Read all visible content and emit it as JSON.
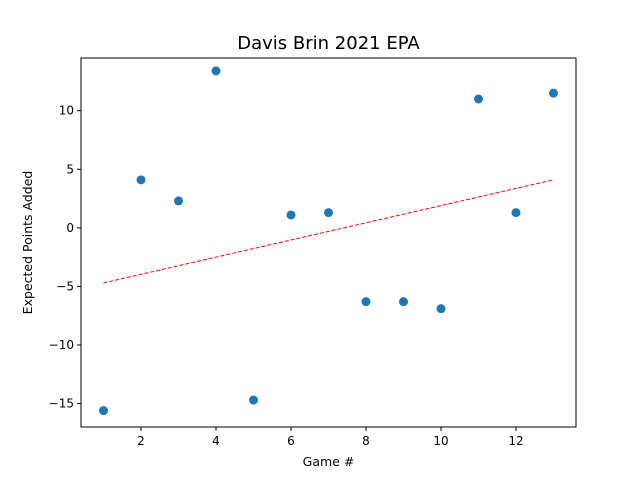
{
  "chart_data": {
    "type": "scatter",
    "title": "Davis Brin 2021 EPA",
    "xlabel": "Game #",
    "ylabel": "Expected Points Added",
    "xlim": [
      0.4,
      13.6
    ],
    "ylim": [
      -17,
      14.5
    ],
    "xticks": [
      2,
      4,
      6,
      8,
      10,
      12
    ],
    "yticks": [
      -15,
      -10,
      -5,
      0,
      5,
      10
    ],
    "grid": false,
    "marker_color": "#1f77b4",
    "trend_color": "#ff0000",
    "points": [
      {
        "x": 1,
        "y": -15.6
      },
      {
        "x": 2,
        "y": 4.1
      },
      {
        "x": 3,
        "y": 2.3
      },
      {
        "x": 4,
        "y": 13.4
      },
      {
        "x": 5,
        "y": -14.7
      },
      {
        "x": 6,
        "y": 1.1
      },
      {
        "x": 7,
        "y": 1.3
      },
      {
        "x": 8,
        "y": -6.3
      },
      {
        "x": 9,
        "y": -6.3
      },
      {
        "x": 10,
        "y": -6.9
      },
      {
        "x": 11,
        "y": 11.0
      },
      {
        "x": 12,
        "y": 1.3
      },
      {
        "x": 13,
        "y": 11.5
      }
    ],
    "trendline": {
      "x": [
        1,
        13
      ],
      "y": [
        -4.7,
        4.1
      ],
      "style": "dashed"
    }
  }
}
